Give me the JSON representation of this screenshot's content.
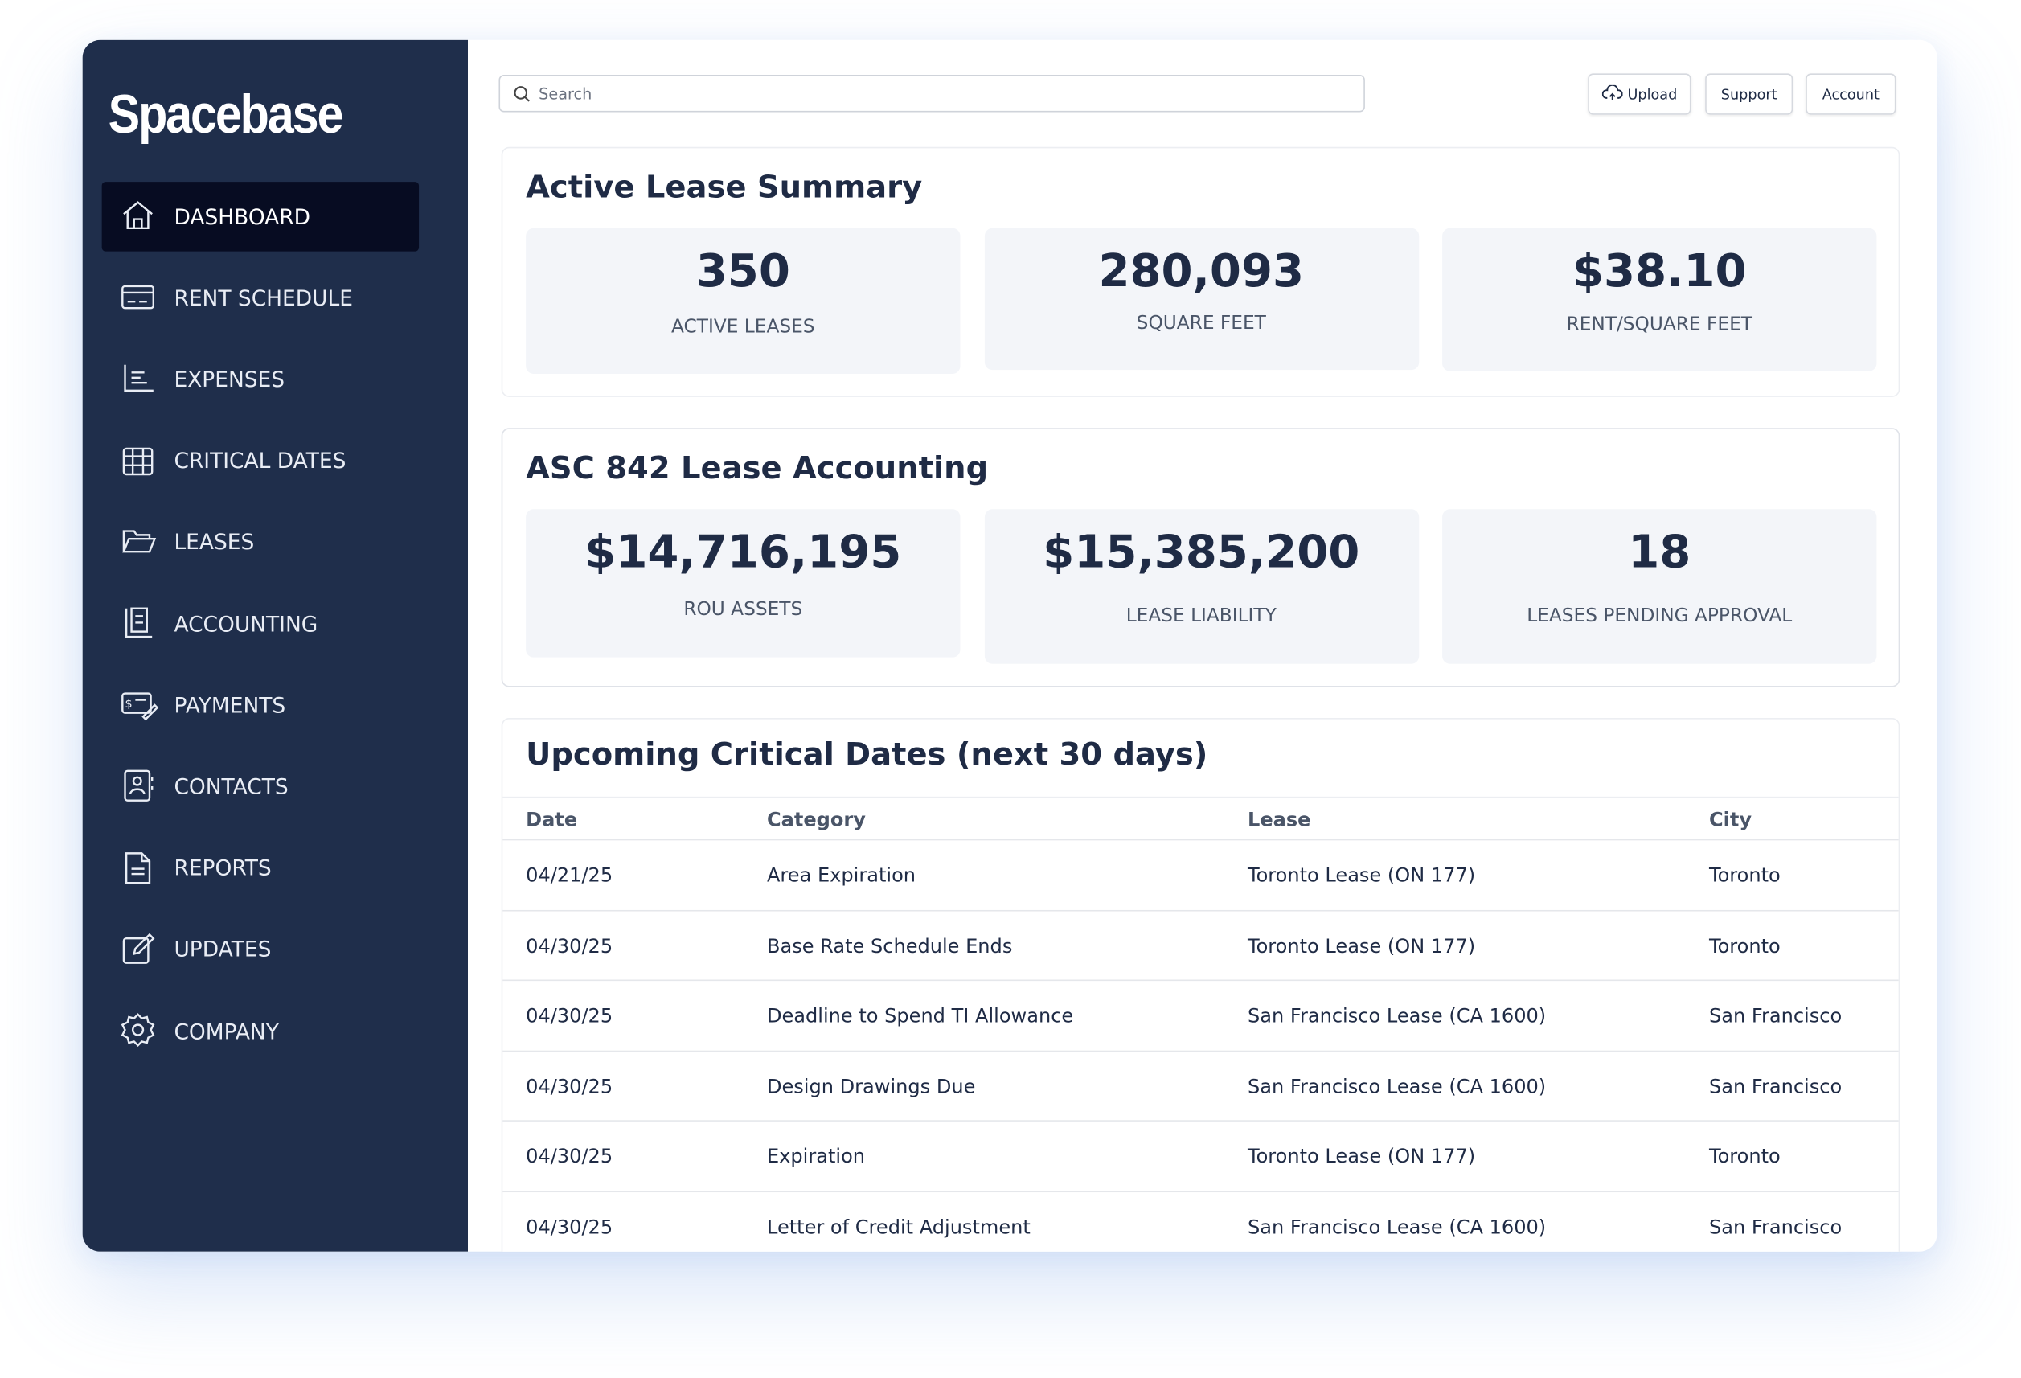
{
  "sidebar": {
    "brand": "Spacebase",
    "nav": [
      "DASHBOARD",
      "RENT SCHEDULE",
      "EXPENSES",
      "CRITICAL DATES",
      "LEASES",
      "ACCOUNTING",
      "PAYMENTS",
      "CONTACTS",
      "REPORTS",
      "UPDATES",
      "COMPANY"
    ]
  },
  "toolbar": {
    "search": "Search",
    "buttons": [
      "Upload",
      "Support",
      "Account"
    ]
  },
  "summary": {
    "title": "Active Lease Summary",
    "stats": [
      {
        "value": "350",
        "label": "ACTIVE LEASES"
      },
      {
        "value": "280,093",
        "label": "SQUARE FEET"
      },
      {
        "value": "$38.10",
        "label": "RENT/SQUARE FEET"
      }
    ]
  },
  "accounting": {
    "title": "ASC 842 Lease Accounting",
    "stats": [
      {
        "value": "$14,716,195",
        "label": "ROU ASSETS"
      },
      {
        "value": "$15,385,200",
        "label": "LEASE LIABILITY"
      },
      {
        "value": "18",
        "label": "LEASES PENDING APPROVAL"
      }
    ]
  },
  "table": {
    "title": "Upcoming Critical Dates (next 30 days)",
    "headers": [
      "Date",
      "Category",
      "Lease",
      "City"
    ],
    "rows": [
      [
        "04/21/25",
        "Area Expiration",
        "Toronto Lease (ON 177)",
        "Toronto"
      ],
      [
        "04/30/25",
        "Base Rate Schedule Ends",
        "Toronto Lease (ON 177)",
        "Toronto"
      ],
      [
        "04/30/25",
        "Deadline to Spend TI Allowance",
        "San Francisco Lease (CA 1600)",
        "San Francisco"
      ],
      [
        "04/30/25",
        "Design Drawings Due",
        "San Francisco Lease (CA 1600)",
        "San Francisco"
      ],
      [
        "04/30/25",
        "Expiration",
        "Toronto Lease (ON 177)",
        "Toronto"
      ],
      [
        "04/30/25",
        "Letter of Credit Adjustment",
        "San Francisco Lease (CA 1600)",
        "San Francisco"
      ]
    ]
  }
}
